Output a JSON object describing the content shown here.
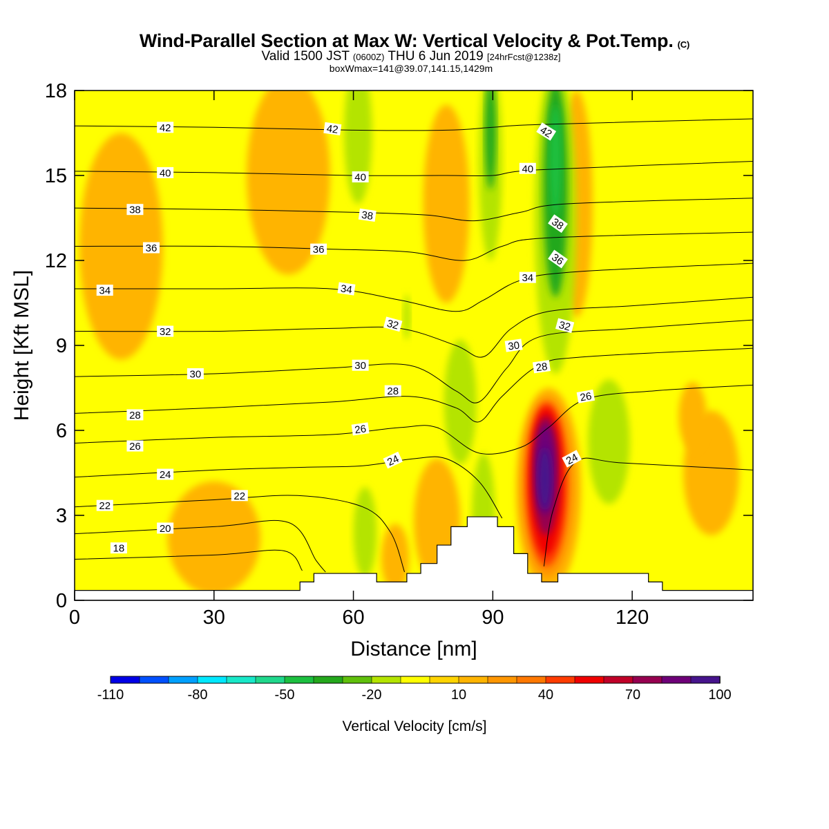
{
  "header": {
    "title": "Wind-Parallel Section at Max W: Vertical Velocity & Pot.Temp.",
    "copyright": "(C)",
    "valid_prefix": "Valid 1500 JST",
    "valid_utc": "(0600Z)",
    "valid_date": "THU 6 Jun 2019",
    "forecast": "[24hrFcst@1238z]",
    "box_info": "boxWmax=141@39.07,141.15,1429m"
  },
  "chart_data": {
    "type": "heatmap",
    "xlabel": "Distance [nm]",
    "ylabel": "Height [Kft MSL]",
    "xlim": [
      0,
      146
    ],
    "ylim": [
      0,
      18
    ],
    "xticks": [
      0,
      30,
      60,
      90,
      120
    ],
    "yticks": [
      0,
      3,
      6,
      9,
      12,
      15,
      18
    ],
    "colorbar": {
      "label": "Vertical Velocity [cm/s]",
      "range": [
        -110,
        100
      ],
      "tick_labels": [
        -110,
        -80,
        -50,
        -20,
        10,
        40,
        70,
        100
      ],
      "colors": [
        "#0000e6",
        "#0050ff",
        "#00a0ff",
        "#00e8ff",
        "#18e8c8",
        "#20d88c",
        "#1cc040",
        "#24a81c",
        "#60c00c",
        "#b4e400",
        "#ffff00",
        "#ffd400",
        "#ffb400",
        "#ff9600",
        "#ff7800",
        "#ff3c00",
        "#f00000",
        "#c00028",
        "#960050",
        "#6e0078",
        "#46148c"
      ]
    },
    "terrain": [
      [
        0,
        0.35
      ],
      [
        48.5,
        0.35
      ],
      [
        48.5,
        0.65
      ],
      [
        51.5,
        0.65
      ],
      [
        51.5,
        0.95
      ],
      [
        65,
        0.95
      ],
      [
        65,
        0.65
      ],
      [
        71.5,
        0.65
      ],
      [
        71.5,
        0.95
      ],
      [
        74.5,
        0.95
      ],
      [
        74.5,
        1.3
      ],
      [
        78,
        1.3
      ],
      [
        78,
        1.95
      ],
      [
        81,
        1.95
      ],
      [
        81,
        2.6
      ],
      [
        84.5,
        2.6
      ],
      [
        84.5,
        2.95
      ],
      [
        91,
        2.95
      ],
      [
        91,
        2.6
      ],
      [
        94.5,
        2.6
      ],
      [
        94.5,
        1.65
      ],
      [
        97.5,
        1.65
      ],
      [
        97.5,
        0.95
      ],
      [
        100.5,
        0.95
      ],
      [
        100.5,
        0.65
      ],
      [
        104,
        0.65
      ],
      [
        104,
        0.95
      ],
      [
        123.5,
        0.95
      ],
      [
        123.5,
        0.65
      ],
      [
        126.5,
        0.65
      ],
      [
        126.5,
        0.35
      ],
      [
        146,
        0.35
      ]
    ],
    "isentropes": [
      {
        "value": 18,
        "points": [
          [
            0,
            1.45
          ],
          [
            30,
            1.6
          ],
          [
            45,
            1.75
          ],
          [
            49,
            1.05
          ]
        ]
      },
      {
        "value": 20,
        "points": [
          [
            0,
            2.35
          ],
          [
            30,
            2.6
          ],
          [
            46,
            2.75
          ],
          [
            52,
            1.4
          ],
          [
            54,
            1.0
          ]
        ]
      },
      {
        "value": 22,
        "points": [
          [
            0,
            3.3
          ],
          [
            30,
            3.55
          ],
          [
            48,
            3.7
          ],
          [
            62,
            3.3
          ],
          [
            68,
            2.4
          ],
          [
            71,
            1.0
          ]
        ]
      },
      {
        "value": 24,
        "points": [
          [
            0,
            4.35
          ],
          [
            30,
            4.6
          ],
          [
            50,
            4.7
          ],
          [
            62,
            4.75
          ],
          [
            73,
            5.0
          ],
          [
            80,
            5.0
          ],
          [
            87,
            4.2
          ],
          [
            92,
            2.9
          ]
        ]
      },
      {
        "value": 24,
        "points": [
          [
            101,
            1.2
          ],
          [
            103,
            3.2
          ],
          [
            108,
            4.9
          ],
          [
            118,
            4.85
          ],
          [
            146,
            4.6
          ]
        ]
      },
      {
        "value": 26,
        "points": [
          [
            0,
            5.55
          ],
          [
            30,
            5.75
          ],
          [
            55,
            5.85
          ],
          [
            70,
            6.1
          ],
          [
            78,
            6.1
          ],
          [
            87,
            5.2
          ],
          [
            96,
            5.4
          ],
          [
            102,
            6.1
          ],
          [
            110,
            7.1
          ],
          [
            125,
            7.4
          ],
          [
            146,
            7.6
          ]
        ]
      },
      {
        "value": 28,
        "points": [
          [
            0,
            6.6
          ],
          [
            30,
            6.8
          ],
          [
            55,
            7.0
          ],
          [
            72,
            7.2
          ],
          [
            82,
            6.8
          ],
          [
            87,
            6.3
          ],
          [
            92,
            7.2
          ],
          [
            100,
            8.3
          ],
          [
            110,
            8.6
          ],
          [
            146,
            8.9
          ]
        ]
      },
      {
        "value": 30,
        "points": [
          [
            0,
            7.9
          ],
          [
            30,
            8.0
          ],
          [
            55,
            8.2
          ],
          [
            72,
            8.3
          ],
          [
            82,
            7.4
          ],
          [
            87,
            7.0
          ],
          [
            93,
            8.2
          ],
          [
            100,
            9.3
          ],
          [
            120,
            9.6
          ],
          [
            146,
            9.9
          ]
        ]
      },
      {
        "value": 32,
        "points": [
          [
            0,
            9.5
          ],
          [
            30,
            9.5
          ],
          [
            55,
            9.6
          ],
          [
            70,
            9.6
          ],
          [
            82,
            9.0
          ],
          [
            88,
            8.6
          ],
          [
            94,
            9.6
          ],
          [
            102,
            10.2
          ],
          [
            120,
            10.4
          ],
          [
            146,
            10.7
          ]
        ]
      },
      {
        "value": 34,
        "points": [
          [
            0,
            11.0
          ],
          [
            30,
            11.0
          ],
          [
            55,
            11.0
          ],
          [
            70,
            10.6
          ],
          [
            82,
            10.2
          ],
          [
            88,
            10.6
          ],
          [
            96,
            11.3
          ],
          [
            108,
            11.6
          ],
          [
            146,
            11.9
          ]
        ]
      },
      {
        "value": 36,
        "points": [
          [
            0,
            12.5
          ],
          [
            30,
            12.5
          ],
          [
            55,
            12.4
          ],
          [
            72,
            12.3
          ],
          [
            84,
            12.0
          ],
          [
            92,
            12.5
          ],
          [
            102,
            12.8
          ],
          [
            146,
            13.0
          ]
        ]
      },
      {
        "value": 38,
        "points": [
          [
            0,
            13.85
          ],
          [
            30,
            13.8
          ],
          [
            60,
            13.7
          ],
          [
            76,
            13.6
          ],
          [
            86,
            13.4
          ],
          [
            96,
            13.7
          ],
          [
            106,
            14.0
          ],
          [
            146,
            14.2
          ]
        ]
      },
      {
        "value": 40,
        "points": [
          [
            0,
            15.15
          ],
          [
            30,
            15.1
          ],
          [
            60,
            15.0
          ],
          [
            80,
            15.0
          ],
          [
            90,
            15.0
          ],
          [
            100,
            15.2
          ],
          [
            146,
            15.5
          ]
        ]
      },
      {
        "value": 42,
        "points": [
          [
            0,
            16.75
          ],
          [
            30,
            16.7
          ],
          [
            60,
            16.6
          ],
          [
            80,
            16.6
          ],
          [
            90,
            16.7
          ],
          [
            100,
            16.8
          ],
          [
            146,
            17.0
          ]
        ]
      }
    ],
    "isentrope_labels": [
      {
        "text": "42",
        "x": 19.5,
        "y": 16.7,
        "rot": 0
      },
      {
        "text": "42",
        "x": 55.5,
        "y": 16.65,
        "rot": 8
      },
      {
        "text": "42",
        "x": 101.5,
        "y": 16.55,
        "rot": 32
      },
      {
        "text": "40",
        "x": 19.5,
        "y": 15.1,
        "rot": 0
      },
      {
        "text": "40",
        "x": 61.5,
        "y": 14.95,
        "rot": 0
      },
      {
        "text": "40",
        "x": 97.5,
        "y": 15.25,
        "rot": 0
      },
      {
        "text": "38",
        "x": 13,
        "y": 13.8,
        "rot": 0
      },
      {
        "text": "38",
        "x": 63,
        "y": 13.6,
        "rot": 8
      },
      {
        "text": "38",
        "x": 104,
        "y": 13.3,
        "rot": 35
      },
      {
        "text": "36",
        "x": 16.5,
        "y": 12.45,
        "rot": 0
      },
      {
        "text": "36",
        "x": 52.5,
        "y": 12.4,
        "rot": 0
      },
      {
        "text": "36",
        "x": 104,
        "y": 12.05,
        "rot": 35
      },
      {
        "text": "34",
        "x": 6.5,
        "y": 10.95,
        "rot": 0
      },
      {
        "text": "34",
        "x": 58.5,
        "y": 11.0,
        "rot": 8
      },
      {
        "text": "34",
        "x": 97.5,
        "y": 11.4,
        "rot": 0
      },
      {
        "text": "32",
        "x": 19.5,
        "y": 9.5,
        "rot": 0
      },
      {
        "text": "32",
        "x": 68.5,
        "y": 9.75,
        "rot": 15
      },
      {
        "text": "32",
        "x": 105.5,
        "y": 9.7,
        "rot": 15
      },
      {
        "text": "30",
        "x": 26,
        "y": 8.0,
        "rot": 0
      },
      {
        "text": "30",
        "x": 61.5,
        "y": 8.3,
        "rot": 0
      },
      {
        "text": "30",
        "x": 94.5,
        "y": 9.0,
        "rot": -8
      },
      {
        "text": "28",
        "x": 13,
        "y": 6.55,
        "rot": 0
      },
      {
        "text": "28",
        "x": 68.5,
        "y": 7.4,
        "rot": 0
      },
      {
        "text": "28",
        "x": 100.5,
        "y": 8.25,
        "rot": -8
      },
      {
        "text": "26",
        "x": 13,
        "y": 5.45,
        "rot": 0
      },
      {
        "text": "26",
        "x": 61.5,
        "y": 6.05,
        "rot": -8
      },
      {
        "text": "26",
        "x": 110,
        "y": 7.2,
        "rot": -10
      },
      {
        "text": "24",
        "x": 19.5,
        "y": 4.45,
        "rot": 0
      },
      {
        "text": "24",
        "x": 68.5,
        "y": 4.95,
        "rot": -25
      },
      {
        "text": "24",
        "x": 107,
        "y": 5.0,
        "rot": -28
      },
      {
        "text": "22",
        "x": 6.5,
        "y": 3.35,
        "rot": 0
      },
      {
        "text": "22",
        "x": 35.5,
        "y": 3.7,
        "rot": 0
      },
      {
        "text": "20",
        "x": 19.5,
        "y": 2.55,
        "rot": 0
      },
      {
        "text": "18",
        "x": 9.5,
        "y": 1.85,
        "rot": 0
      }
    ],
    "w_features": [
      {
        "cx": 102,
        "cy": 3.9,
        "rx": 7,
        "ry": 3.6,
        "w": 10
      },
      {
        "cx": 101.8,
        "cy": 4.0,
        "rx": 5.6,
        "ry": 3.2,
        "w": 25
      },
      {
        "cx": 101.6,
        "cy": 4.1,
        "rx": 4.5,
        "ry": 2.9,
        "w": 40
      },
      {
        "cx": 101.5,
        "cy": 4.2,
        "rx": 3.6,
        "ry": 2.6,
        "w": 55
      },
      {
        "cx": 101.4,
        "cy": 4.4,
        "rx": 2.8,
        "ry": 2.1,
        "w": 70
      },
      {
        "cx": 101.3,
        "cy": 4.6,
        "rx": 2.1,
        "ry": 1.6,
        "w": 85
      },
      {
        "cx": 101.2,
        "cy": 4.3,
        "rx": 1.4,
        "ry": 1.1,
        "w": 100
      },
      {
        "cx": 103.5,
        "cy": 13.5,
        "rx": 4.5,
        "ry": 5.5,
        "w": -20
      },
      {
        "cx": 103.5,
        "cy": 14.5,
        "rx": 2.6,
        "ry": 3.8,
        "w": -35
      },
      {
        "cx": 103.5,
        "cy": 15.5,
        "rx": 1.3,
        "ry": 2.0,
        "w": -50
      },
      {
        "cx": 89.5,
        "cy": 15.5,
        "rx": 2.5,
        "ry": 3.5,
        "w": -20
      },
      {
        "cx": 89.5,
        "cy": 16.5,
        "rx": 1.2,
        "ry": 2.0,
        "w": -35
      },
      {
        "cx": 61,
        "cy": 16.5,
        "rx": 3,
        "ry": 2.5,
        "w": -20
      },
      {
        "cx": 83,
        "cy": 7.0,
        "rx": 3.5,
        "ry": 2.2,
        "w": -20
      },
      {
        "cx": 88,
        "cy": 3.0,
        "rx": 2.5,
        "ry": 2.2,
        "w": -20
      },
      {
        "cx": 115,
        "cy": 5.6,
        "rx": 4.5,
        "ry": 2.2,
        "w": -20
      },
      {
        "cx": 62.5,
        "cy": 2.4,
        "rx": 2.5,
        "ry": 1.6,
        "w": -20
      },
      {
        "cx": 71.5,
        "cy": 10.0,
        "rx": 0.8,
        "ry": 0.8,
        "w": -20
      },
      {
        "cx": 10,
        "cy": 12.5,
        "rx": 9,
        "ry": 4,
        "w": 10
      },
      {
        "cx": 46,
        "cy": 15.0,
        "rx": 9,
        "ry": 3.5,
        "w": 10
      },
      {
        "cx": 80,
        "cy": 14.0,
        "rx": 5,
        "ry": 3.5,
        "w": 10
      },
      {
        "cx": 108,
        "cy": 14.0,
        "rx": 3.5,
        "ry": 4,
        "w": 10
      },
      {
        "cx": 30,
        "cy": 2.2,
        "rx": 10,
        "ry": 2,
        "w": 10
      },
      {
        "cx": 78,
        "cy": 2.8,
        "rx": 5,
        "ry": 2.2,
        "w": 10
      },
      {
        "cx": 137,
        "cy": 4.5,
        "rx": 6,
        "ry": 2.2,
        "w": 10
      },
      {
        "cx": 133,
        "cy": 6.5,
        "rx": 3,
        "ry": 1.2,
        "w": 10
      },
      {
        "cx": 69,
        "cy": 1.5,
        "rx": 3,
        "ry": 1.2,
        "w": 10
      }
    ]
  }
}
